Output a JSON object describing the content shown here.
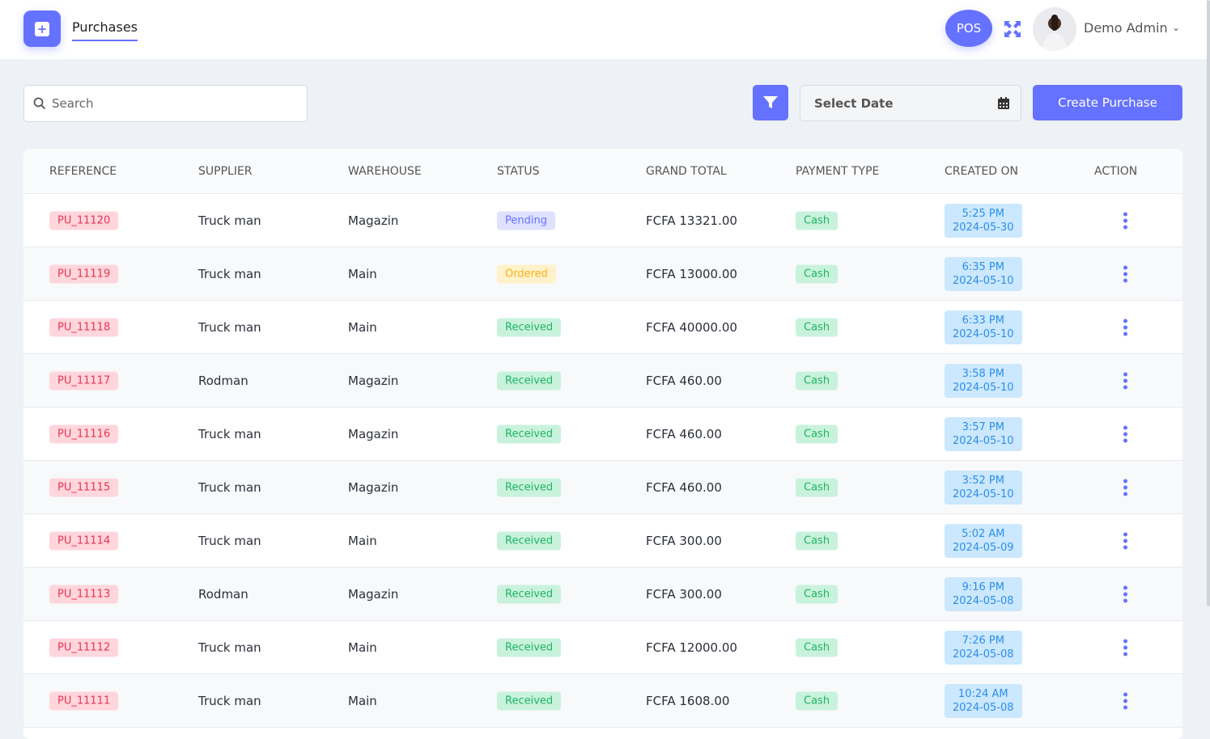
{
  "header": {
    "title": "Purchases",
    "pos_label": "POS",
    "user_name": "Demo Admin"
  },
  "toolbar": {
    "search_placeholder": "Search",
    "date_placeholder": "Select Date",
    "create_label": "Create Purchase"
  },
  "colors": {
    "accent": "#6571ff"
  },
  "table": {
    "columns": [
      "REFERENCE",
      "SUPPLIER",
      "WAREHOUSE",
      "STATUS",
      "GRAND TOTAL",
      "PAYMENT TYPE",
      "CREATED ON",
      "ACTION"
    ],
    "rows": [
      {
        "reference": "PU_11120",
        "supplier": "Truck man",
        "warehouse": "Magazin",
        "status": "Pending",
        "grand_total": "FCFA 13321.00",
        "payment_type": "Cash",
        "time": "5:25 PM",
        "date": "2024-05-30"
      },
      {
        "reference": "PU_11119",
        "supplier": "Truck man",
        "warehouse": "Main",
        "status": "Ordered",
        "grand_total": "FCFA 13000.00",
        "payment_type": "Cash",
        "time": "6:35 PM",
        "date": "2024-05-10"
      },
      {
        "reference": "PU_11118",
        "supplier": "Truck man",
        "warehouse": "Main",
        "status": "Received",
        "grand_total": "FCFA 40000.00",
        "payment_type": "Cash",
        "time": "6:33 PM",
        "date": "2024-05-10"
      },
      {
        "reference": "PU_11117",
        "supplier": "Rodman",
        "warehouse": "Magazin",
        "status": "Received",
        "grand_total": "FCFA 460.00",
        "payment_type": "Cash",
        "time": "3:58 PM",
        "date": "2024-05-10"
      },
      {
        "reference": "PU_11116",
        "supplier": "Truck man",
        "warehouse": "Magazin",
        "status": "Received",
        "grand_total": "FCFA 460.00",
        "payment_type": "Cash",
        "time": "3:57 PM",
        "date": "2024-05-10"
      },
      {
        "reference": "PU_11115",
        "supplier": "Truck man",
        "warehouse": "Magazin",
        "status": "Received",
        "grand_total": "FCFA 460.00",
        "payment_type": "Cash",
        "time": "3:52 PM",
        "date": "2024-05-10"
      },
      {
        "reference": "PU_11114",
        "supplier": "Truck man",
        "warehouse": "Main",
        "status": "Received",
        "grand_total": "FCFA 300.00",
        "payment_type": "Cash",
        "time": "5:02 AM",
        "date": "2024-05-09"
      },
      {
        "reference": "PU_11113",
        "supplier": "Rodman",
        "warehouse": "Magazin",
        "status": "Received",
        "grand_total": "FCFA 300.00",
        "payment_type": "Cash",
        "time": "9:16 PM",
        "date": "2024-05-08"
      },
      {
        "reference": "PU_11112",
        "supplier": "Truck man",
        "warehouse": "Main",
        "status": "Received",
        "grand_total": "FCFA 12000.00",
        "payment_type": "Cash",
        "time": "7:26 PM",
        "date": "2024-05-08"
      },
      {
        "reference": "PU_11111",
        "supplier": "Truck man",
        "warehouse": "Main",
        "status": "Received",
        "grand_total": "FCFA 1608.00",
        "payment_type": "Cash",
        "time": "10:24 AM",
        "date": "2024-05-08"
      }
    ]
  }
}
